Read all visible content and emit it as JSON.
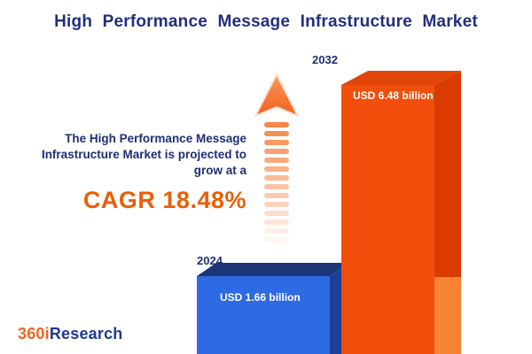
{
  "title": "High Performance Message Infrastructure Market",
  "description": {
    "lines": [
      "The High Performance Message",
      "Infrastructure Market is projected to",
      "grow at a"
    ],
    "cagr": "CAGR 18.48%"
  },
  "chart_data": {
    "type": "bar",
    "title": "High Performance Message Infrastructure Market",
    "categories": [
      "2024",
      "2032"
    ],
    "series": [
      {
        "name": "Market size (USD billion)",
        "values": [
          1.66,
          6.48
        ]
      }
    ],
    "bar_labels": [
      "USD 1.66 billion",
      "USD 6.48 billion"
    ],
    "unit": "USD billion",
    "annotation": "CAGR 18.48%",
    "bar_colors": [
      "#2d6ae3",
      "#f14e0b"
    ],
    "legend": false,
    "axes": "none (pictorial 3D bars, values shown as labels on bars)"
  },
  "colors": {
    "title_navy": "#22307a",
    "cagr_orange": "#e95f07",
    "arrow_orange": "#f5813f",
    "bar_2024_front": "#2d6ae3",
    "bar_2024_side": "#1e3f98",
    "bar_2032_front": "#f14e0b",
    "bar_2032_side_dark": "#da3b02",
    "bar_2032_side_light": "#f68433"
  },
  "logo": {
    "part1": "360i",
    "part2": "Research"
  }
}
